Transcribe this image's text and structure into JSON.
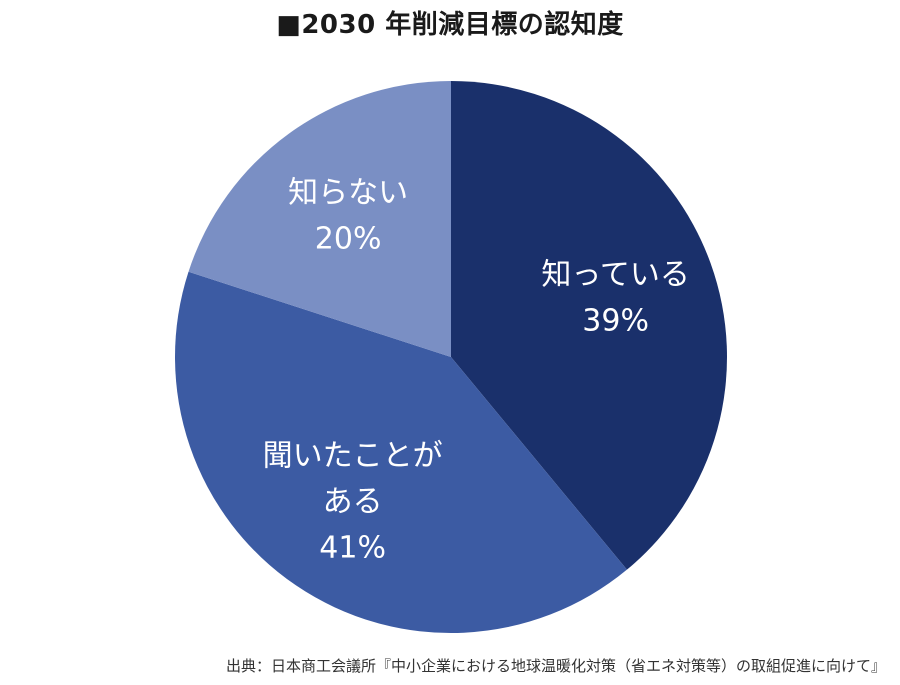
{
  "chart_data": {
    "type": "pie",
    "title": "■2030 年削減目標の認知度",
    "slices": [
      {
        "label_lines": [
          "知っている"
        ],
        "pct_text": "39%",
        "value": 39,
        "color": "#1a306b"
      },
      {
        "label_lines": [
          "聞いたことが",
          "ある"
        ],
        "pct_text": "41%",
        "value": 41,
        "color": "#3c5ba3"
      },
      {
        "label_lines": [
          "知らない"
        ],
        "pct_text": "20%",
        "value": 20,
        "color": "#7a8fc4"
      }
    ],
    "start": "12 o'clock",
    "direction": "clockwise",
    "source": "出典：日本商工会議所『中小企業における地球温暖化対策（省エネ対策等）の取組促進に向けて』"
  }
}
